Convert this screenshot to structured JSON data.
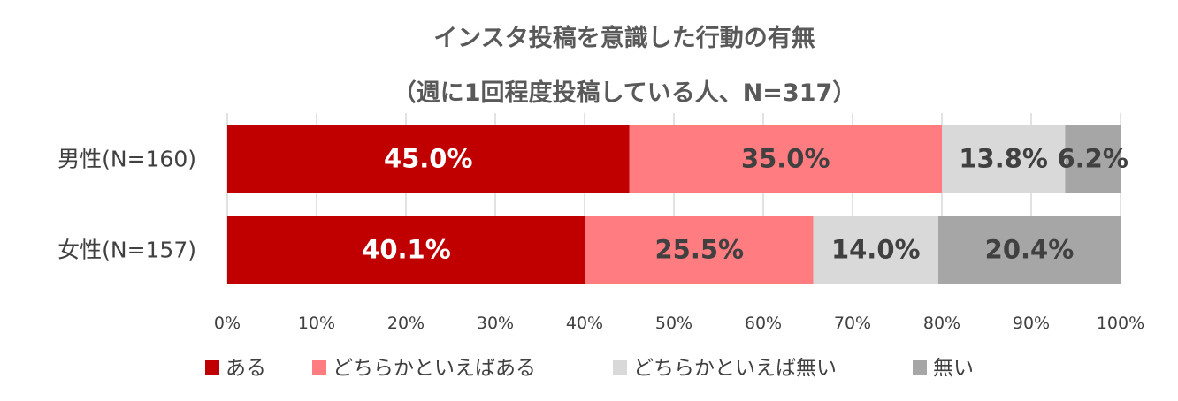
{
  "chart_data": {
    "type": "bar",
    "orientation": "horizontal",
    "stacked": true,
    "title": "インスタ投稿を意識した行動の有無",
    "subtitle": "（週に1回程度投稿している人、N=317）",
    "categories": [
      "男性(N=160)",
      "女性(N=157)"
    ],
    "series": [
      {
        "name": "ある",
        "color": "#C00000",
        "label_color": "#FFFFFF",
        "values": [
          45.0,
          40.1
        ],
        "labels": [
          "45.0%",
          "40.1%"
        ]
      },
      {
        "name": "どちらかといえばある",
        "color": "#FF7C80",
        "label_color": "#404040",
        "values": [
          35.0,
          25.5
        ],
        "labels": [
          "35.0%",
          "25.5%"
        ]
      },
      {
        "name": "どちらかといえば無い",
        "color": "#D9D9D9",
        "label_color": "#404040",
        "values": [
          13.8,
          14.0
        ],
        "labels": [
          "13.8%",
          "14.0%"
        ]
      },
      {
        "name": "無い",
        "color": "#A6A6A6",
        "label_color": "#404040",
        "values": [
          6.2,
          20.4
        ],
        "labels": [
          "6.2%",
          "20.4%"
        ]
      }
    ],
    "xlim": [
      0,
      100
    ],
    "xticks": [
      "0%",
      "10%",
      "20%",
      "30%",
      "40%",
      "50%",
      "60%",
      "70%",
      "80%",
      "90%",
      "100%"
    ],
    "grid": true,
    "legend_position": "bottom"
  }
}
